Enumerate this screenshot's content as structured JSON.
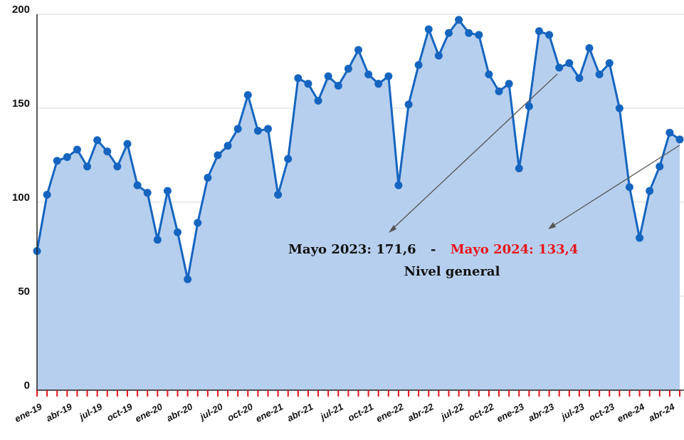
{
  "chart_data": {
    "type": "area",
    "categories": [
      "ene-19",
      null,
      null,
      "abr-19",
      null,
      null,
      "jul-19",
      null,
      null,
      "oct-19",
      null,
      null,
      "ene-20",
      null,
      null,
      "abr-20",
      null,
      null,
      "jul-20",
      null,
      null,
      "oct-20",
      null,
      null,
      "ene-21",
      null,
      null,
      "abr-21",
      null,
      null,
      "jul-21",
      null,
      null,
      "oct-21",
      null,
      null,
      "ene-22",
      null,
      null,
      "abr-22",
      null,
      null,
      "jul-22",
      null,
      null,
      "oct-22",
      null,
      null,
      "ene-23",
      null,
      null,
      "abr-23",
      null,
      null,
      "jul-23",
      null,
      null,
      "oct-23",
      null,
      null,
      "ene-24",
      null,
      null,
      "abr-24",
      null
    ],
    "values": [
      74,
      104,
      122,
      124,
      128,
      119,
      133,
      127,
      119,
      131,
      109,
      105,
      80,
      106,
      84,
      59,
      89,
      113,
      125,
      130,
      139,
      157,
      138,
      139,
      104,
      123,
      166,
      163,
      154,
      167,
      162,
      171,
      181,
      168,
      163,
      167,
      109,
      152,
      173,
      192,
      178,
      190,
      197,
      190,
      189,
      168,
      159,
      163,
      118,
      151,
      191,
      189,
      171.6,
      174,
      166,
      182,
      168,
      174,
      150,
      108,
      81,
      106,
      119,
      137,
      133.4
    ],
    "color": "#1565c0",
    "area_color": "#b7cfee",
    "ylim": [
      0,
      200
    ],
    "yticks": [
      0,
      50,
      100,
      150,
      200
    ],
    "grid": true,
    "annotations": [
      "Mayo 2023: 171,6",
      "-",
      "Mayo  2024: 133,4",
      "Nivel general"
    ]
  }
}
